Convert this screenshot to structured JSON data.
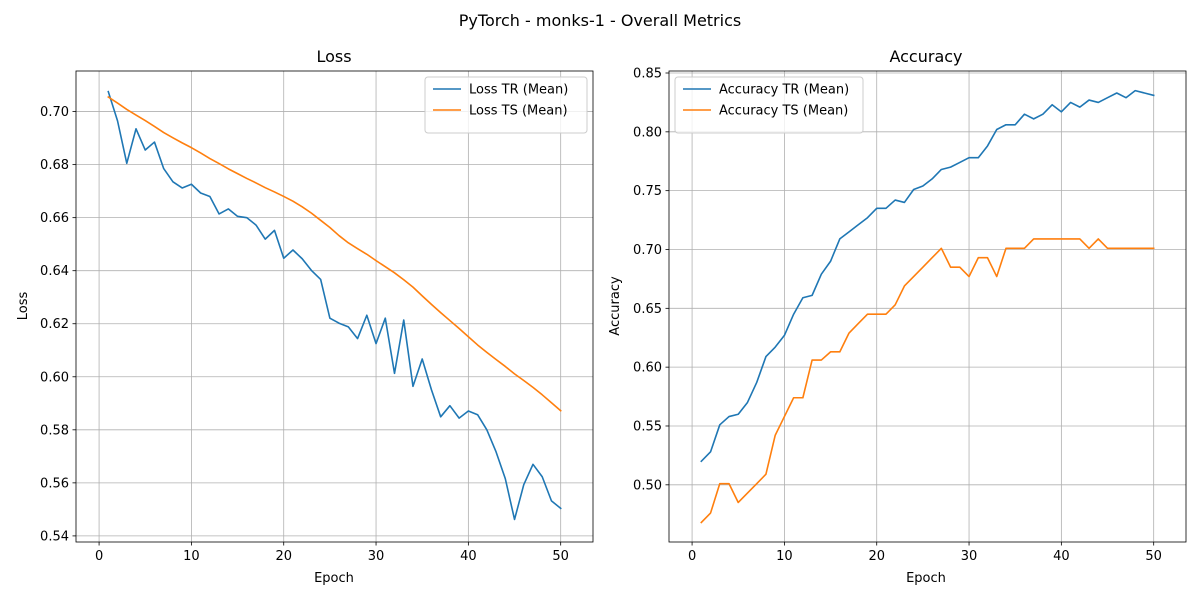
{
  "figure_title": "PyTorch - monks-1 - Overall Metrics",
  "chart_data": [
    {
      "type": "line",
      "title": "Loss",
      "xlabel": "Epoch",
      "ylabel": "Loss",
      "xlim": [
        -2.5,
        53.5
      ],
      "ylim": [
        0.5377,
        0.7153
      ],
      "xticks": [
        0,
        10,
        20,
        30,
        40,
        50
      ],
      "yticks": [
        0.54,
        0.56,
        0.58,
        0.6,
        0.62,
        0.64,
        0.66,
        0.68,
        0.7
      ],
      "ytick_labels": [
        "0.54",
        "0.56",
        "0.58",
        "0.60",
        "0.62",
        "0.64",
        "0.66",
        "0.68",
        "0.70"
      ],
      "grid": true,
      "legend": "top-right",
      "x": [
        1,
        2,
        3,
        4,
        5,
        6,
        7,
        8,
        9,
        10,
        11,
        12,
        13,
        14,
        15,
        16,
        17,
        18,
        19,
        20,
        21,
        22,
        23,
        24,
        25,
        26,
        27,
        28,
        29,
        30,
        31,
        32,
        33,
        34,
        35,
        36,
        37,
        38,
        39,
        40,
        41,
        42,
        43,
        44,
        45,
        46,
        47,
        48,
        49,
        50
      ],
      "series": [
        {
          "name": "Loss TR (Mean)",
          "color": "#1f77b4",
          "values": [
            0.7075,
            0.6965,
            0.6805,
            0.6935,
            0.6855,
            0.6885,
            0.6785,
            0.6735,
            0.6712,
            0.6726,
            0.6693,
            0.668,
            0.6614,
            0.6633,
            0.6605,
            0.66,
            0.6572,
            0.6519,
            0.6552,
            0.6447,
            0.6478,
            0.6445,
            0.6401,
            0.6367,
            0.6221,
            0.6202,
            0.6188,
            0.6144,
            0.6232,
            0.6125,
            0.6221,
            0.6013,
            0.6214,
            0.5964,
            0.6067,
            0.5951,
            0.5849,
            0.5891,
            0.5844,
            0.5871,
            0.5857,
            0.58,
            0.5717,
            0.5616,
            0.5462,
            0.5593,
            0.567,
            0.5623,
            0.5532,
            0.5504
          ]
        },
        {
          "name": "Loss TS (Mean)",
          "color": "#ff7f0e",
          "values": [
            0.7055,
            0.7032,
            0.7008,
            0.6987,
            0.6966,
            0.6944,
            0.6921,
            0.6901,
            0.6882,
            0.6864,
            0.6844,
            0.6823,
            0.6804,
            0.6784,
            0.6766,
            0.6748,
            0.6731,
            0.6713,
            0.6697,
            0.668,
            0.6662,
            0.6641,
            0.6617,
            0.659,
            0.6563,
            0.6532,
            0.6505,
            0.6483,
            0.6462,
            0.6438,
            0.6415,
            0.6392,
            0.6366,
            0.6338,
            0.6305,
            0.6273,
            0.6242,
            0.6212,
            0.6182,
            0.6151,
            0.612,
            0.6092,
            0.6065,
            0.6039,
            0.6011,
            0.5986,
            0.596,
            0.5932,
            0.5902,
            0.5872
          ]
        }
      ]
    },
    {
      "type": "line",
      "title": "Accuracy",
      "xlabel": "Epoch",
      "ylabel": "Accuracy",
      "xlim": [
        -2.5,
        53.5
      ],
      "ylim": [
        0.4514,
        0.8517
      ],
      "xticks": [
        0,
        10,
        20,
        30,
        40,
        50
      ],
      "yticks": [
        0.5,
        0.55,
        0.6,
        0.65,
        0.7,
        0.75,
        0.8,
        0.85
      ],
      "ytick_labels": [
        "0.50",
        "0.55",
        "0.60",
        "0.65",
        "0.70",
        "0.75",
        "0.80",
        "0.85"
      ],
      "grid": true,
      "legend": "top-left",
      "x": [
        1,
        2,
        3,
        4,
        5,
        6,
        7,
        8,
        9,
        10,
        11,
        12,
        13,
        14,
        15,
        16,
        17,
        18,
        19,
        20,
        21,
        22,
        23,
        24,
        25,
        26,
        27,
        28,
        29,
        30,
        31,
        32,
        33,
        34,
        35,
        36,
        37,
        38,
        39,
        40,
        41,
        42,
        43,
        44,
        45,
        46,
        47,
        48,
        49,
        50
      ],
      "series": [
        {
          "name": "Accuracy TR (Mean)",
          "color": "#1f77b4",
          "values": [
            0.52,
            0.528,
            0.551,
            0.558,
            0.56,
            0.57,
            0.587,
            0.609,
            0.617,
            0.627,
            0.645,
            0.659,
            0.661,
            0.679,
            0.69,
            0.709,
            0.715,
            0.721,
            0.727,
            0.735,
            0.735,
            0.742,
            0.74,
            0.751,
            0.754,
            0.76,
            0.768,
            0.77,
            0.774,
            0.778,
            0.778,
            0.788,
            0.802,
            0.806,
            0.806,
            0.815,
            0.811,
            0.815,
            0.823,
            0.817,
            0.825,
            0.821,
            0.827,
            0.825,
            0.829,
            0.833,
            0.829,
            0.835,
            0.833,
            0.831
          ]
        },
        {
          "name": "Accuracy TS (Mean)",
          "color": "#ff7f0e",
          "values": [
            0.468,
            0.476,
            0.501,
            0.501,
            0.485,
            0.493,
            0.501,
            0.509,
            0.542,
            0.558,
            0.574,
            0.574,
            0.606,
            0.606,
            0.613,
            0.613,
            0.629,
            0.637,
            0.645,
            0.645,
            0.645,
            0.653,
            0.669,
            0.677,
            0.685,
            0.693,
            0.701,
            0.685,
            0.685,
            0.677,
            0.693,
            0.693,
            0.677,
            0.701,
            0.701,
            0.701,
            0.709,
            0.709,
            0.709,
            0.709,
            0.709,
            0.709,
            0.701,
            0.709,
            0.701,
            0.701,
            0.701,
            0.701,
            0.701,
            0.701
          ]
        }
      ]
    }
  ]
}
